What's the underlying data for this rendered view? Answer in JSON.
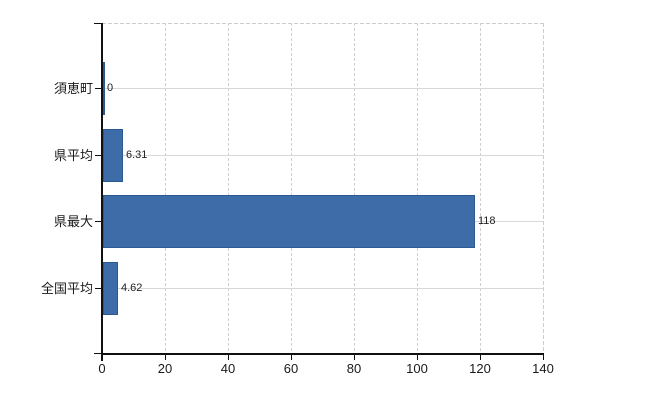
{
  "chart_data": {
    "type": "bar",
    "orientation": "horizontal",
    "title": "",
    "categories": [
      "須恵町",
      "県平均",
      "県最大",
      "全国平均"
    ],
    "values": [
      0,
      6.31,
      118,
      4.62
    ],
    "value_labels": [
      "0",
      "6.31",
      "118",
      "4.62"
    ],
    "x_ticks": [
      0,
      20,
      40,
      60,
      80,
      100,
      120,
      140
    ],
    "x_tick_labels": [
      "0",
      "20",
      "40",
      "60",
      "80",
      "100",
      "120",
      "140"
    ],
    "xlim": [
      0,
      140
    ],
    "grid": true,
    "legend": false,
    "colors": {
      "bar_fill": "#3d6ca8",
      "bar_border": "#2a5a94",
      "axis": "#111111",
      "vgrid": "#cfcfcf",
      "hgrid": "#d8d8d8",
      "text": "#1a1a1a",
      "background": "#ffffff"
    }
  }
}
